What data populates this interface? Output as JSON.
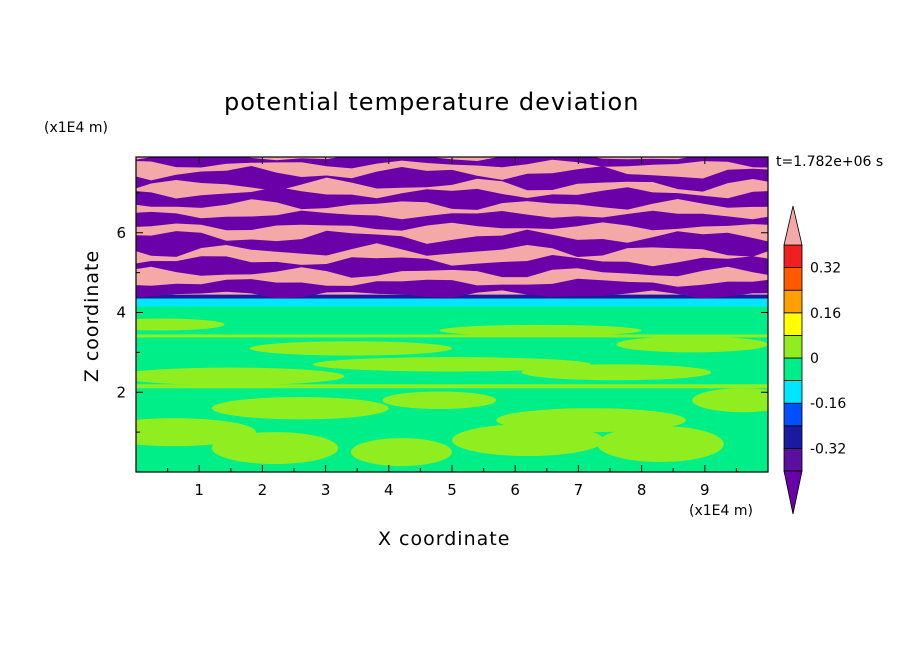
{
  "chart_data": {
    "type": "heatmap",
    "title": "potential temperature deviation",
    "xlabel": "X coordinate",
    "ylabel": "Z coordinate",
    "x_unit": "(x1E4 m)",
    "y_unit": "(x1E4 m)",
    "time_label": "t=1.782e+06 s",
    "xlim": [
      0,
      10
    ],
    "ylim": [
      0,
      7.9
    ],
    "x_ticks": [
      "1",
      "2",
      "3",
      "4",
      "5",
      "6",
      "7",
      "8",
      "9"
    ],
    "y_ticks": [
      "2",
      "4",
      "6"
    ],
    "colorbar": {
      "labels": [
        "0.32",
        "0.16",
        "0",
        "-0.16",
        "-0.32"
      ],
      "label_positions": [
        0.32,
        0.16,
        0,
        -0.16,
        -0.32
      ],
      "levels": [
        -0.4,
        -0.32,
        -0.24,
        -0.16,
        -0.08,
        0,
        0.08,
        0.16,
        0.24,
        0.32,
        0.4
      ],
      "colors": [
        "#5a0f9e",
        "#1a1aa0",
        "#0050ff",
        "#00e6ff",
        "#00ee88",
        "#90ee20",
        "#ffff00",
        "#ffa000",
        "#ff5a00",
        "#f02020",
        "#f4a8a8"
      ],
      "under_color": "#6a00a8",
      "over_color": "#f4a8a8"
    },
    "regions": [
      {
        "z_range": [
          4.4,
          7.9
        ],
        "description_colors": [
          "#f4a8a8",
          "#6a00a8"
        ],
        "pattern": "alternating horizontal bands"
      },
      {
        "z_range": [
          4.1,
          4.4
        ],
        "colors": [
          "#1a1aa0",
          "#00e6ff"
        ]
      },
      {
        "z_range": [
          0,
          4.1
        ],
        "colors": [
          "#00ee88",
          "#90ee20"
        ]
      }
    ]
  }
}
